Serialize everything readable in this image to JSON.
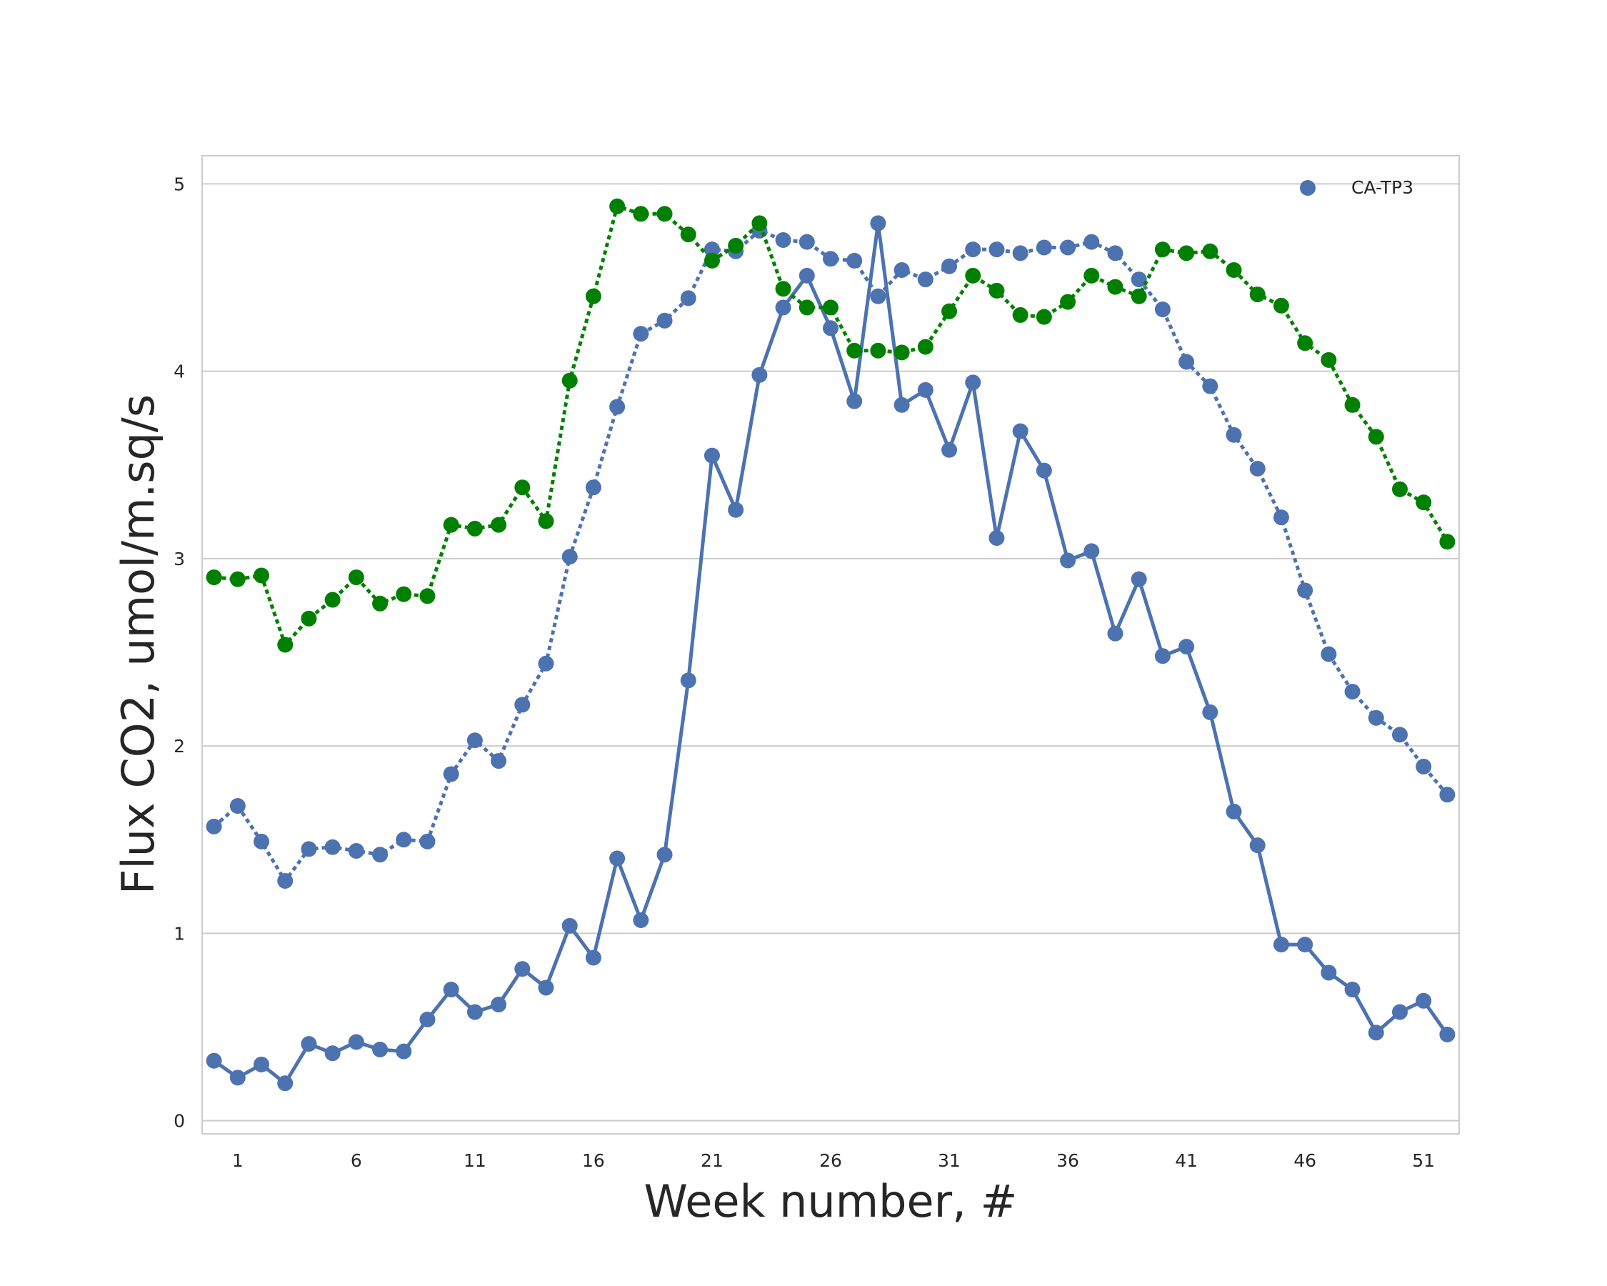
{
  "chart_data": {
    "type": "line",
    "title": "",
    "xlabel": "Week number, #",
    "ylabel": "Flux CO2, umol/m.sq/s",
    "x": [
      0,
      1,
      2,
      3,
      4,
      5,
      6,
      7,
      8,
      9,
      10,
      11,
      12,
      13,
      14,
      15,
      16,
      17,
      18,
      19,
      20,
      21,
      22,
      23,
      24,
      25,
      26,
      27,
      28,
      29,
      30,
      31,
      32,
      33,
      34,
      35,
      36,
      37,
      38,
      39,
      40,
      41,
      42,
      43,
      44,
      45,
      46,
      47,
      48,
      49,
      50,
      51,
      52
    ],
    "xtick_labels": [
      "1",
      "6",
      "11",
      "16",
      "21",
      "26",
      "31",
      "36",
      "41",
      "46",
      "51"
    ],
    "xtick_values": [
      1,
      6,
      11,
      16,
      21,
      26,
      31,
      36,
      41,
      46,
      51
    ],
    "xlim": [
      -0.5,
      52.5
    ],
    "ylim": [
      -0.07,
      5.15
    ],
    "yticks": [
      0,
      1,
      2,
      3,
      4,
      5
    ],
    "grid": "horizontal",
    "legend_position": "top-right",
    "legend": [
      "CA-TP3"
    ],
    "series": [
      {
        "name": "CA-TP3",
        "color": "#4c72b0",
        "line_style": "solid",
        "values": [
          0.32,
          0.23,
          0.3,
          0.2,
          0.41,
          0.36,
          0.42,
          0.38,
          0.37,
          0.54,
          0.7,
          0.58,
          0.62,
          0.81,
          0.71,
          1.04,
          0.87,
          1.4,
          1.07,
          1.42,
          2.35,
          3.55,
          3.26,
          3.98,
          4.34,
          4.51,
          4.23,
          3.84,
          4.79,
          3.82,
          3.9,
          3.58,
          3.94,
          3.11,
          3.68,
          3.47,
          2.99,
          3.04,
          2.6,
          2.89,
          2.48,
          2.53,
          2.18,
          1.65,
          1.47,
          0.94,
          0.94,
          0.79,
          0.7,
          0.47,
          0.58,
          0.64,
          0.46
        ]
      },
      {
        "color": "#4c72b0",
        "line_style": "dotted",
        "values": [
          1.57,
          1.68,
          1.49,
          1.28,
          1.45,
          1.46,
          1.44,
          1.42,
          1.5,
          1.49,
          1.85,
          2.03,
          1.92,
          2.22,
          2.44,
          3.01,
          3.38,
          3.81,
          4.2,
          4.27,
          4.39,
          4.65,
          4.64,
          4.75,
          4.7,
          4.69,
          4.6,
          4.59,
          4.4,
          4.54,
          4.49,
          4.56,
          4.65,
          4.65,
          4.63,
          4.66,
          4.66,
          4.69,
          4.63,
          4.49,
          4.33,
          4.05,
          3.92,
          3.66,
          3.48,
          3.22,
          2.83,
          2.49,
          2.29,
          2.15,
          2.06,
          1.89,
          1.74
        ]
      },
      {
        "color": "#008000",
        "line_style": "dotted",
        "values": [
          2.9,
          2.89,
          2.91,
          2.54,
          2.68,
          2.78,
          2.9,
          2.76,
          2.81,
          2.8,
          3.18,
          3.16,
          3.18,
          3.38,
          3.2,
          3.95,
          4.4,
          4.88,
          4.84,
          4.84,
          4.73,
          4.59,
          4.67,
          4.79,
          4.44,
          4.34,
          4.34,
          4.11,
          4.11,
          4.1,
          4.13,
          4.32,
          4.51,
          4.43,
          4.3,
          4.29,
          4.37,
          4.51,
          4.45,
          4.4,
          4.65,
          4.63,
          4.64,
          4.54,
          4.41,
          4.35,
          4.15,
          4.06,
          3.82,
          3.65,
          3.37,
          3.3,
          3.09
        ]
      }
    ]
  }
}
